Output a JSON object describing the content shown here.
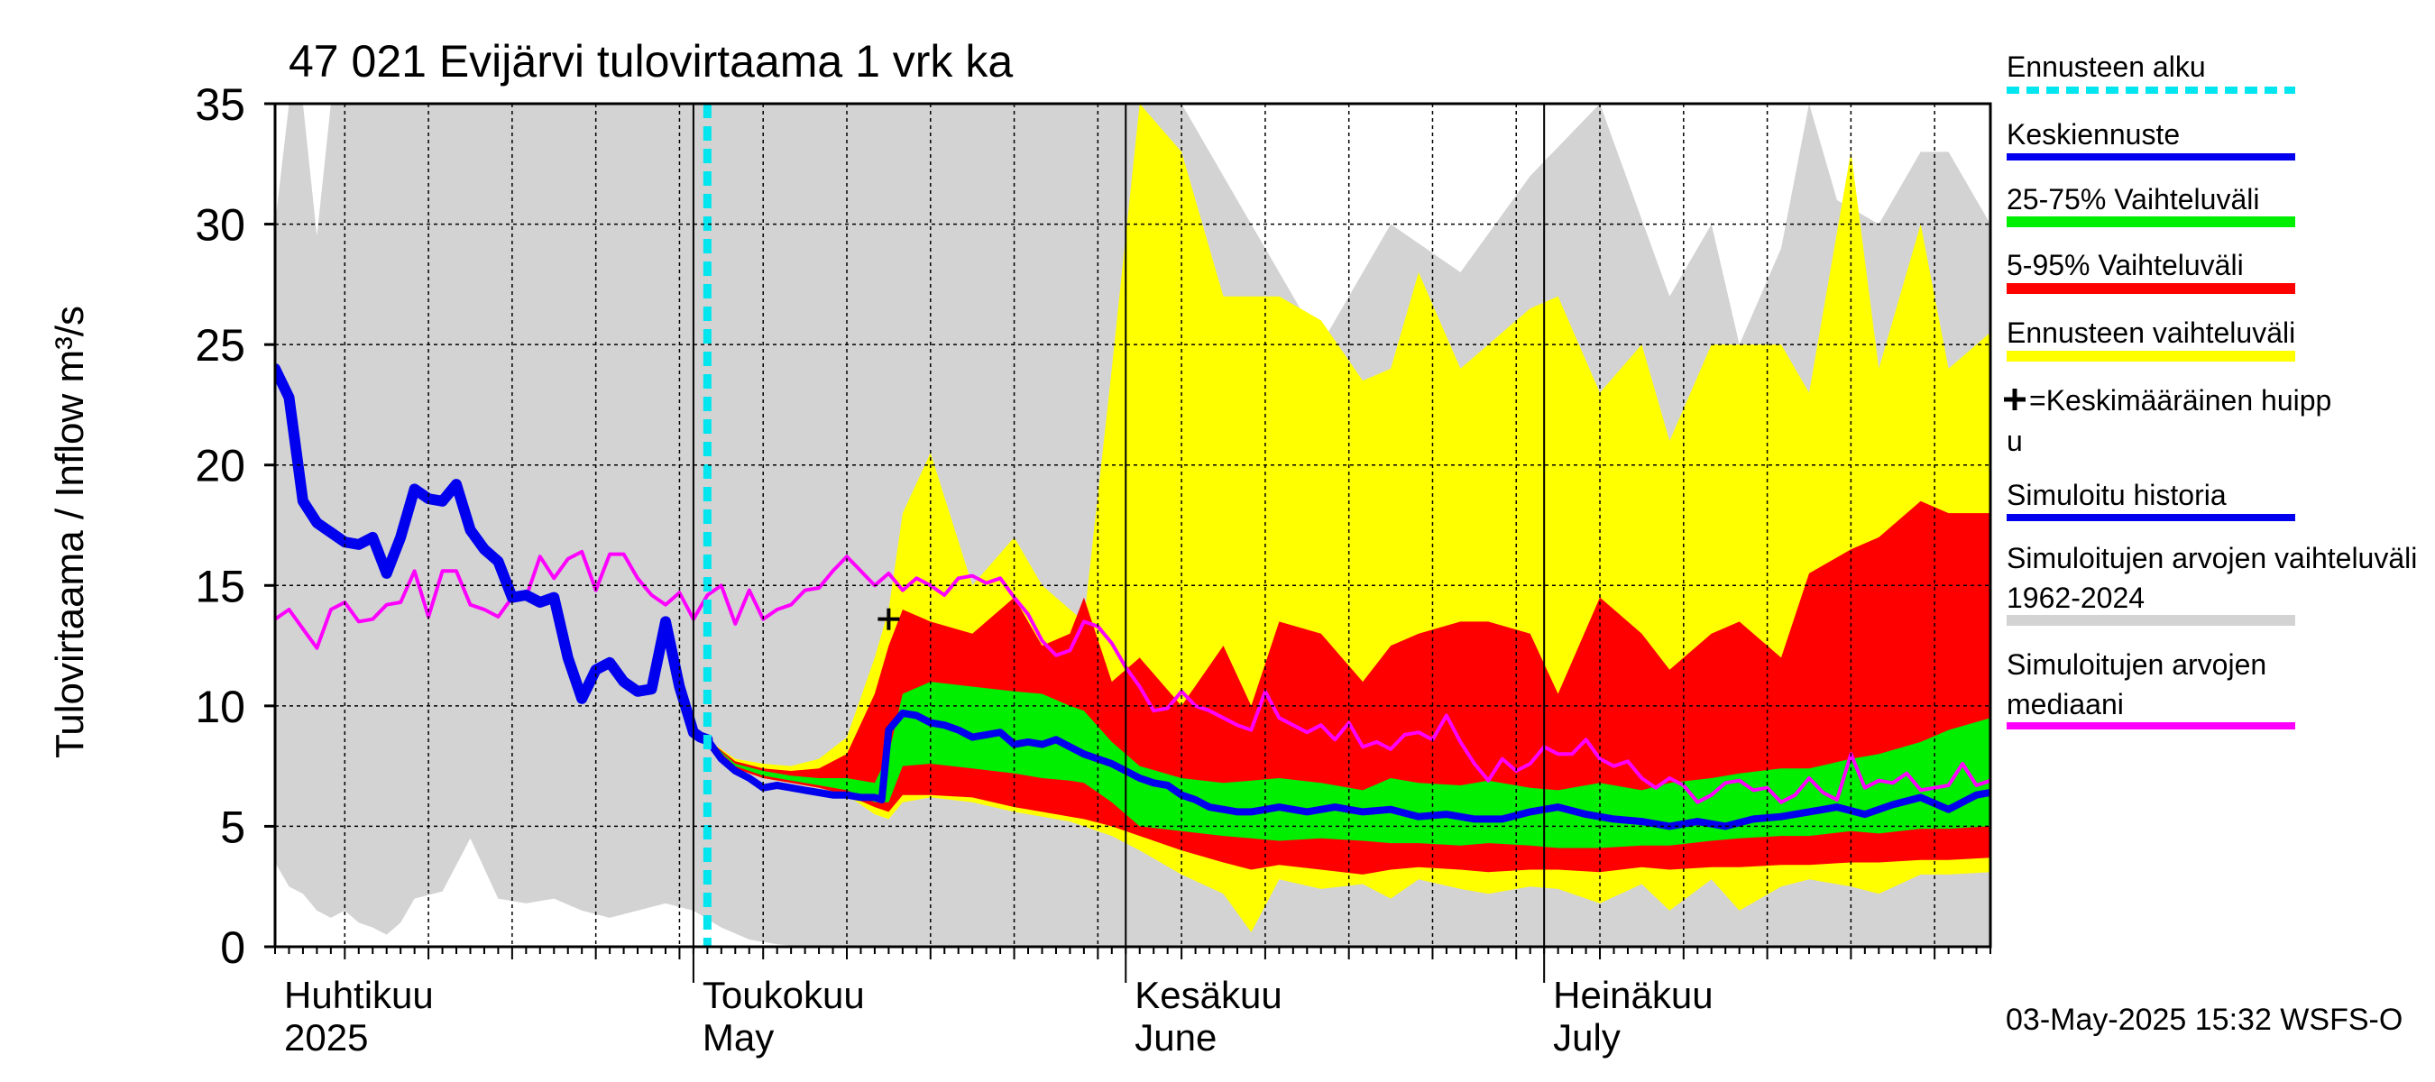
{
  "chart_data": {
    "type": "area",
    "title": "47 021 Evijärvi tulovirtaama 1 vrk ka",
    "ylabel": "Tulovirtaama / Inflow    m³/s",
    "ylim": [
      0,
      35
    ],
    "yticks": [
      0,
      5,
      10,
      15,
      20,
      25,
      30,
      35
    ],
    "xlim_days": [
      0,
      123
    ],
    "month_labels": [
      {
        "fi": "Huhtikuu",
        "en": "2025",
        "day": 0
      },
      {
        "fi": "Toukokuu",
        "en": "May",
        "day": 30
      },
      {
        "fi": "Kesäkuu",
        "en": "June",
        "day": 61
      },
      {
        "fi": "Heinäkuu",
        "en": "July",
        "day": 91
      }
    ],
    "forecast_start_day": 31,
    "mean_peak": {
      "day": 44,
      "value": 13.6
    },
    "timestamp": "03-May-2025 15:32 WSFS-O",
    "legend": [
      {
        "label": "Ennusteen alku",
        "color": "#00e5ee",
        "style": "dotted"
      },
      {
        "label": "Keskiennuste",
        "color": "#0000ee",
        "style": "line"
      },
      {
        "label": "25-75% Vaihteluväli",
        "color": "#00ee00",
        "style": "band"
      },
      {
        "label": "5-95% Vaihteluväli",
        "color": "#ff0000",
        "style": "band"
      },
      {
        "label": "Ennusteen vaihteluväli",
        "color": "#ffff00",
        "style": "band"
      },
      {
        "label": "=Keskimääräinen huippu",
        "color": "#000000",
        "style": "plus"
      },
      {
        "label": "Simuloitu historia",
        "color": "#0000ee",
        "style": "line"
      },
      {
        "label": "Simuloitujen arvojen vaihteluväli 1962-2024",
        "color": "#d3d3d3",
        "style": "band"
      },
      {
        "label": "Simuloitujen arvojen mediaani",
        "color": "#ff00ff",
        "style": "line"
      }
    ],
    "series": {
      "hist_range": {
        "x": [
          0,
          1,
          2,
          3,
          4,
          5,
          6,
          7,
          8,
          9,
          10,
          12,
          14,
          16,
          18,
          20,
          22,
          24,
          26,
          28,
          30,
          32,
          34,
          36,
          38,
          40,
          45,
          50,
          55,
          60,
          62,
          65,
          70,
          75,
          80,
          85,
          90,
          95,
          100,
          103,
          105,
          108,
          110,
          112,
          115,
          118,
          120,
          123
        ],
        "low": [
          3.5,
          2.5,
          2.2,
          1.5,
          1.2,
          1.5,
          1.0,
          0.8,
          0.5,
          1.0,
          2.0,
          2.3,
          4.5,
          2.0,
          1.8,
          2.0,
          1.5,
          1.2,
          1.5,
          1.8,
          1.5,
          0.8,
          0.3,
          0.1,
          0,
          0,
          0,
          0,
          0,
          0,
          0,
          0,
          0,
          0,
          0,
          0,
          0,
          0,
          0,
          0,
          0,
          0,
          0,
          0,
          0,
          0,
          0,
          0
        ],
        "high": [
          30,
          35,
          35,
          29.5,
          35,
          35,
          35,
          35,
          35,
          35,
          35,
          35,
          35,
          35,
          35,
          35,
          35,
          35,
          35,
          35,
          35,
          35,
          35,
          35,
          35,
          35,
          35,
          35,
          35,
          35,
          35,
          35,
          30,
          25,
          30,
          28,
          32,
          35,
          27,
          30,
          25,
          29,
          35,
          31,
          30,
          33,
          33,
          30
        ]
      },
      "forecast_range": {
        "x": [
          31,
          33,
          35,
          37,
          39,
          41,
          43,
          44,
          45,
          47,
          50,
          53,
          55,
          57,
          58,
          60,
          62,
          65,
          68,
          70,
          72,
          75,
          78,
          80,
          82,
          85,
          87,
          90,
          92,
          95,
          98,
          100,
          103,
          105,
          108,
          110,
          113,
          115,
          118,
          120,
          123
        ],
        "low": [
          8.6,
          7.4,
          7.0,
          6.8,
          6.6,
          6.3,
          5.5,
          5.3,
          6.0,
          6.2,
          6.0,
          5.6,
          5.4,
          5.2,
          5.0,
          4.6,
          4.0,
          3.0,
          2.2,
          0.6,
          2.8,
          2.4,
          2.6,
          2.0,
          2.8,
          2.4,
          2.2,
          2.5,
          2.4,
          1.8,
          2.6,
          1.5,
          2.8,
          1.5,
          2.5,
          2.8,
          2.5,
          2.2,
          3.0,
          3.0,
          3.1
        ],
        "high": [
          8.6,
          7.8,
          7.6,
          7.5,
          7.8,
          8.7,
          12.0,
          14.0,
          18.0,
          20.5,
          15.0,
          17.0,
          15.0,
          14.0,
          13.5,
          24.0,
          35.0,
          33.0,
          27.0,
          27.0,
          27.0,
          26.0,
          23.5,
          24.0,
          28.0,
          24.0,
          25.0,
          26.5,
          27.0,
          23.0,
          25.0,
          21.0,
          25.0,
          25.0,
          25.0,
          23.0,
          33.0,
          24.0,
          30.0,
          24.0,
          25.5
        ]
      },
      "band_5_95": {
        "x": [
          31,
          33,
          35,
          37,
          39,
          41,
          43,
          44,
          45,
          47,
          50,
          53,
          55,
          57,
          58,
          60,
          62,
          65,
          68,
          70,
          72,
          75,
          78,
          80,
          82,
          85,
          87,
          90,
          92,
          95,
          98,
          100,
          103,
          105,
          108,
          110,
          113,
          115,
          118,
          120,
          123
        ],
        "low": [
          8.6,
          7.4,
          7.0,
          6.8,
          6.6,
          6.3,
          5.8,
          5.6,
          6.3,
          6.3,
          6.2,
          5.8,
          5.6,
          5.4,
          5.3,
          5.0,
          4.6,
          4.0,
          3.5,
          3.2,
          3.4,
          3.2,
          3.0,
          3.2,
          3.3,
          3.2,
          3.1,
          3.2,
          3.2,
          3.1,
          3.3,
          3.2,
          3.3,
          3.3,
          3.4,
          3.4,
          3.5,
          3.5,
          3.6,
          3.6,
          3.7
        ],
        "high": [
          8.6,
          7.7,
          7.4,
          7.3,
          7.4,
          8.0,
          10.5,
          12.5,
          14.0,
          13.5,
          13.0,
          14.5,
          12.5,
          13.0,
          14.5,
          11.0,
          12.0,
          10.0,
          12.5,
          10.0,
          13.5,
          13.0,
          11.0,
          12.5,
          13.0,
          13.5,
          13.5,
          13.0,
          10.5,
          14.5,
          13.0,
          11.5,
          13.0,
          13.5,
          12.0,
          15.5,
          16.5,
          17.0,
          18.5,
          18.0,
          18.0
        ]
      },
      "band_25_75": {
        "x": [
          31,
          33,
          35,
          37,
          39,
          41,
          43,
          44,
          45,
          47,
          50,
          53,
          55,
          57,
          58,
          60,
          62,
          65,
          68,
          70,
          72,
          75,
          78,
          80,
          82,
          85,
          87,
          90,
          92,
          95,
          98,
          100,
          103,
          105,
          108,
          110,
          113,
          115,
          118,
          120,
          123
        ],
        "low": [
          8.6,
          7.5,
          7.1,
          6.9,
          6.7,
          6.5,
          6.0,
          6.0,
          7.5,
          7.6,
          7.4,
          7.2,
          7.0,
          6.9,
          6.8,
          6.0,
          5.0,
          4.8,
          4.6,
          4.5,
          4.4,
          4.5,
          4.4,
          4.3,
          4.3,
          4.2,
          4.3,
          4.2,
          4.1,
          4.1,
          4.2,
          4.2,
          4.4,
          4.5,
          4.6,
          4.6,
          4.8,
          4.7,
          4.9,
          4.9,
          5.0
        ],
        "high": [
          8.6,
          7.6,
          7.3,
          7.1,
          7.0,
          7.0,
          6.8,
          8.0,
          10.5,
          11.0,
          10.8,
          10.6,
          10.5,
          10.0,
          9.8,
          8.5,
          7.5,
          7.0,
          6.8,
          6.9,
          7.0,
          6.8,
          6.5,
          7.0,
          6.8,
          6.7,
          6.9,
          6.6,
          6.5,
          6.8,
          6.5,
          6.8,
          7.0,
          7.2,
          7.4,
          7.4,
          7.8,
          8.0,
          8.5,
          9.0,
          9.5
        ]
      },
      "mean_forecast": {
        "x": [
          31,
          32,
          33,
          34,
          35,
          36,
          37,
          38,
          39,
          40,
          41,
          42,
          43,
          43.5,
          44,
          45,
          46,
          47,
          48,
          49,
          50,
          51,
          52,
          53,
          54,
          55,
          56,
          57,
          58,
          59,
          60,
          61,
          62,
          63,
          64,
          65,
          66,
          67,
          68,
          69,
          70,
          72,
          74,
          76,
          78,
          80,
          82,
          84,
          86,
          88,
          90,
          92,
          94,
          96,
          98,
          100,
          102,
          104,
          106,
          108,
          110,
          112,
          114,
          116,
          118,
          120,
          122,
          123
        ],
        "y": [
          8.6,
          7.8,
          7.3,
          7.0,
          6.6,
          6.7,
          6.6,
          6.5,
          6.4,
          6.3,
          6.3,
          6.2,
          6.2,
          6.1,
          9.0,
          9.7,
          9.6,
          9.3,
          9.2,
          9.0,
          8.7,
          8.8,
          8.9,
          8.4,
          8.5,
          8.4,
          8.6,
          8.3,
          8.0,
          7.8,
          7.6,
          7.3,
          7.0,
          6.8,
          6.7,
          6.3,
          6.1,
          5.8,
          5.7,
          5.6,
          5.6,
          5.8,
          5.6,
          5.8,
          5.6,
          5.7,
          5.4,
          5.5,
          5.3,
          5.3,
          5.6,
          5.8,
          5.5,
          5.3,
          5.2,
          5.0,
          5.2,
          5.0,
          5.3,
          5.4,
          5.6,
          5.8,
          5.5,
          5.9,
          6.2,
          5.7,
          6.3,
          6.4
        ]
      },
      "sim_history": {
        "x": [
          0,
          1,
          2,
          3,
          4,
          5,
          6,
          7,
          8,
          9,
          10,
          11,
          12,
          13,
          14,
          15,
          16,
          17,
          18,
          19,
          20,
          21,
          22,
          23,
          24,
          25,
          26,
          27,
          28,
          29,
          30,
          30.5,
          31
        ],
        "y": [
          24.0,
          22.8,
          18.5,
          17.6,
          17.2,
          16.8,
          16.7,
          17.0,
          15.5,
          17.0,
          19.0,
          18.6,
          18.5,
          19.2,
          17.3,
          16.5,
          16.0,
          14.5,
          14.6,
          14.3,
          14.5,
          12.0,
          10.3,
          11.5,
          11.8,
          11.0,
          10.6,
          10.7,
          13.5,
          10.8,
          8.9,
          8.7,
          8.6
        ]
      },
      "median": {
        "x": [
          0,
          1,
          2,
          3,
          4,
          5,
          6,
          7,
          8,
          9,
          10,
          11,
          12,
          13,
          14,
          15,
          16,
          17,
          18,
          19,
          20,
          21,
          22,
          23,
          24,
          25,
          26,
          27,
          28,
          29,
          30,
          31,
          32,
          33,
          34,
          35,
          36,
          37,
          38,
          39,
          40,
          41,
          42,
          43,
          44,
          45,
          46,
          47,
          48,
          49,
          50,
          51,
          52,
          53,
          54,
          55,
          56,
          57,
          58,
          59,
          60,
          61,
          62,
          63,
          64,
          65,
          66,
          67,
          68,
          69,
          70,
          71,
          72,
          73,
          74,
          75,
          76,
          77,
          78,
          79,
          80,
          81,
          82,
          83,
          84,
          85,
          86,
          87,
          88,
          89,
          90,
          91,
          92,
          93,
          94,
          95,
          96,
          97,
          98,
          99,
          100,
          101,
          102,
          103,
          104,
          105,
          106,
          107,
          108,
          109,
          110,
          111,
          112,
          113,
          114,
          115,
          116,
          117,
          118,
          119,
          120,
          121,
          122,
          123
        ],
        "y": [
          13.6,
          14.0,
          13.2,
          12.4,
          14.0,
          14.3,
          13.5,
          13.6,
          14.2,
          14.3,
          15.6,
          13.7,
          15.6,
          15.6,
          14.2,
          14.0,
          13.7,
          14.5,
          14.5,
          16.2,
          15.3,
          16.1,
          16.4,
          14.8,
          16.3,
          16.3,
          15.3,
          14.6,
          14.2,
          14.7,
          13.6,
          14.6,
          15.0,
          13.4,
          14.8,
          13.6,
          14.0,
          14.2,
          14.8,
          14.9,
          15.6,
          16.2,
          15.6,
          15.0,
          15.5,
          14.8,
          15.3,
          15.0,
          14.6,
          15.3,
          15.4,
          15.1,
          15.3,
          14.5,
          13.8,
          12.7,
          12.1,
          12.3,
          13.5,
          13.3,
          12.6,
          11.6,
          10.8,
          9.8,
          9.9,
          10.6,
          10.0,
          9.8,
          9.5,
          9.2,
          9.0,
          10.6,
          9.5,
          9.2,
          8.9,
          9.2,
          8.6,
          9.3,
          8.3,
          8.5,
          8.2,
          8.8,
          8.9,
          8.6,
          9.6,
          8.5,
          7.6,
          6.9,
          7.8,
          7.3,
          7.6,
          8.3,
          8.0,
          8.0,
          8.6,
          7.8,
          7.5,
          7.7,
          7.0,
          6.6,
          7.0,
          6.7,
          6.0,
          6.3,
          6.8,
          6.9,
          6.5,
          6.6,
          6.0,
          6.3,
          7.0,
          6.4,
          6.1,
          8.0,
          6.6,
          6.9,
          6.8,
          7.2,
          6.5,
          6.6,
          6.7,
          7.6,
          6.7,
          6.9
        ]
      }
    }
  }
}
